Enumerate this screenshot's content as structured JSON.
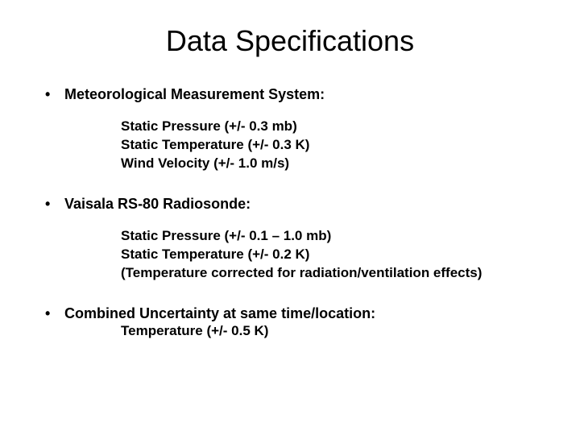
{
  "title": "Data Specifications",
  "sections": [
    {
      "header": "Meteorological Measurement System:",
      "items": [
        "Static Pressure (+/- 0.3 mb)",
        "Static Temperature (+/- 0.3 K)",
        "Wind Velocity (+/- 1.0 m/s)"
      ]
    },
    {
      "header": "Vaisala RS-80 Radiosonde:",
      "items": [
        "Static Pressure (+/- 0.1 – 1.0 mb)",
        "Static Temperature (+/- 0.2 K)",
        "(Temperature corrected for radiation/ventilation effects)"
      ]
    },
    {
      "header": "Combined Uncertainty at same time/location:",
      "items": [
        "Temperature (+/- 0.5 K)"
      ]
    }
  ],
  "styling": {
    "background_color": "#ffffff",
    "text_color": "#000000",
    "title_fontsize": 36,
    "body_fontsize": 18,
    "font_family": "Arial",
    "bullet_char": "•"
  }
}
